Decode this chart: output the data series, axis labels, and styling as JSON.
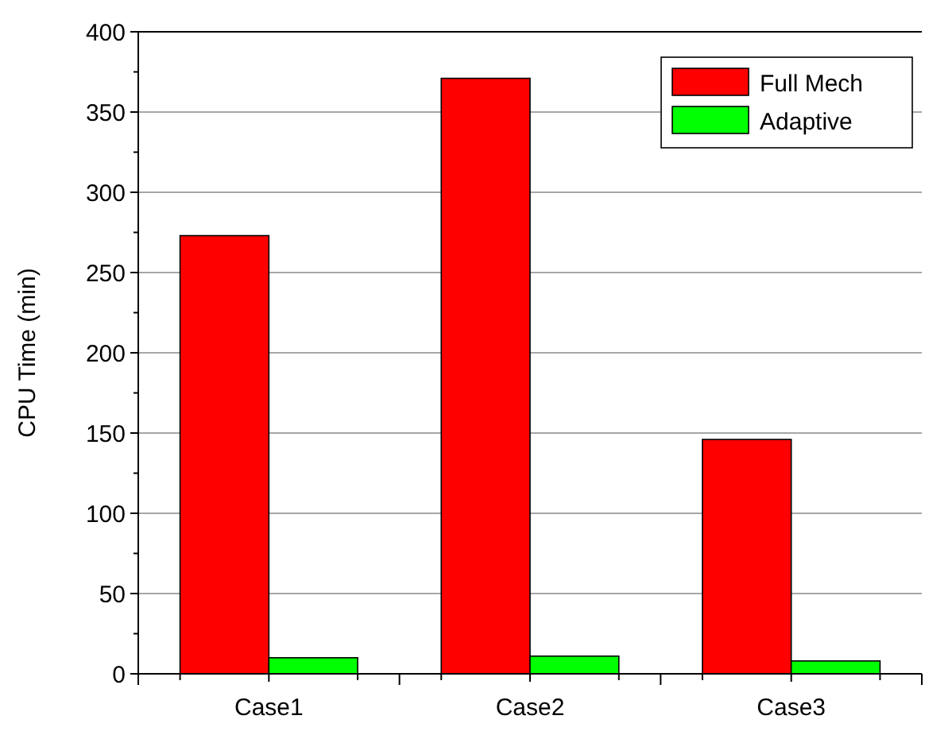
{
  "chart_data": {
    "type": "bar",
    "ylabel": "CPU Time (min)",
    "categories": [
      "Case1",
      "Case2",
      "Case3"
    ],
    "series": [
      {
        "name": "Full Mech",
        "color": "#ff0000",
        "values": [
          273,
          371,
          146
        ]
      },
      {
        "name": "Adaptive",
        "color": "#00ff00",
        "values": [
          10,
          11,
          8
        ]
      }
    ],
    "ylim": [
      0,
      400
    ],
    "yticks": [
      0,
      50,
      100,
      150,
      200,
      250,
      300,
      350,
      400
    ],
    "grid": "y",
    "legend": "top right"
  }
}
